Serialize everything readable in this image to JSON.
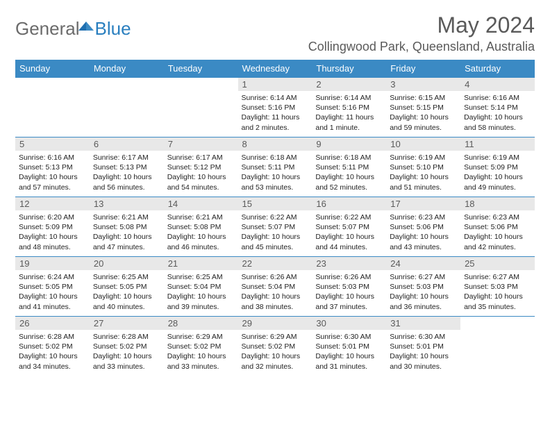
{
  "logo": {
    "part1": "General",
    "part2": "Blue"
  },
  "title": "May 2024",
  "location": "Collingwood Park, Queensland, Australia",
  "colors": {
    "header_bg": "#3b8ac4",
    "header_text": "#ffffff",
    "daynum_bg": "#e8e8e8",
    "daynum_text": "#5a5a5a",
    "border": "#3b8ac4",
    "title_text": "#5a5a5a",
    "logo_gray": "#6b6b6b",
    "logo_blue": "#2a7fbf",
    "body_text": "#222222",
    "page_bg": "#ffffff"
  },
  "day_names": [
    "Sunday",
    "Monday",
    "Tuesday",
    "Wednesday",
    "Thursday",
    "Friday",
    "Saturday"
  ],
  "weeks": [
    [
      null,
      null,
      null,
      {
        "n": "1",
        "sr": "6:14 AM",
        "ss": "5:16 PM",
        "dl": "11 hours and 2 minutes."
      },
      {
        "n": "2",
        "sr": "6:14 AM",
        "ss": "5:16 PM",
        "dl": "11 hours and 1 minute."
      },
      {
        "n": "3",
        "sr": "6:15 AM",
        "ss": "5:15 PM",
        "dl": "10 hours and 59 minutes."
      },
      {
        "n": "4",
        "sr": "6:16 AM",
        "ss": "5:14 PM",
        "dl": "10 hours and 58 minutes."
      }
    ],
    [
      {
        "n": "5",
        "sr": "6:16 AM",
        "ss": "5:13 PM",
        "dl": "10 hours and 57 minutes."
      },
      {
        "n": "6",
        "sr": "6:17 AM",
        "ss": "5:13 PM",
        "dl": "10 hours and 56 minutes."
      },
      {
        "n": "7",
        "sr": "6:17 AM",
        "ss": "5:12 PM",
        "dl": "10 hours and 54 minutes."
      },
      {
        "n": "8",
        "sr": "6:18 AM",
        "ss": "5:11 PM",
        "dl": "10 hours and 53 minutes."
      },
      {
        "n": "9",
        "sr": "6:18 AM",
        "ss": "5:11 PM",
        "dl": "10 hours and 52 minutes."
      },
      {
        "n": "10",
        "sr": "6:19 AM",
        "ss": "5:10 PM",
        "dl": "10 hours and 51 minutes."
      },
      {
        "n": "11",
        "sr": "6:19 AM",
        "ss": "5:09 PM",
        "dl": "10 hours and 49 minutes."
      }
    ],
    [
      {
        "n": "12",
        "sr": "6:20 AM",
        "ss": "5:09 PM",
        "dl": "10 hours and 48 minutes."
      },
      {
        "n": "13",
        "sr": "6:21 AM",
        "ss": "5:08 PM",
        "dl": "10 hours and 47 minutes."
      },
      {
        "n": "14",
        "sr": "6:21 AM",
        "ss": "5:08 PM",
        "dl": "10 hours and 46 minutes."
      },
      {
        "n": "15",
        "sr": "6:22 AM",
        "ss": "5:07 PM",
        "dl": "10 hours and 45 minutes."
      },
      {
        "n": "16",
        "sr": "6:22 AM",
        "ss": "5:07 PM",
        "dl": "10 hours and 44 minutes."
      },
      {
        "n": "17",
        "sr": "6:23 AM",
        "ss": "5:06 PM",
        "dl": "10 hours and 43 minutes."
      },
      {
        "n": "18",
        "sr": "6:23 AM",
        "ss": "5:06 PM",
        "dl": "10 hours and 42 minutes."
      }
    ],
    [
      {
        "n": "19",
        "sr": "6:24 AM",
        "ss": "5:05 PM",
        "dl": "10 hours and 41 minutes."
      },
      {
        "n": "20",
        "sr": "6:25 AM",
        "ss": "5:05 PM",
        "dl": "10 hours and 40 minutes."
      },
      {
        "n": "21",
        "sr": "6:25 AM",
        "ss": "5:04 PM",
        "dl": "10 hours and 39 minutes."
      },
      {
        "n": "22",
        "sr": "6:26 AM",
        "ss": "5:04 PM",
        "dl": "10 hours and 38 minutes."
      },
      {
        "n": "23",
        "sr": "6:26 AM",
        "ss": "5:03 PM",
        "dl": "10 hours and 37 minutes."
      },
      {
        "n": "24",
        "sr": "6:27 AM",
        "ss": "5:03 PM",
        "dl": "10 hours and 36 minutes."
      },
      {
        "n": "25",
        "sr": "6:27 AM",
        "ss": "5:03 PM",
        "dl": "10 hours and 35 minutes."
      }
    ],
    [
      {
        "n": "26",
        "sr": "6:28 AM",
        "ss": "5:02 PM",
        "dl": "10 hours and 34 minutes."
      },
      {
        "n": "27",
        "sr": "6:28 AM",
        "ss": "5:02 PM",
        "dl": "10 hours and 33 minutes."
      },
      {
        "n": "28",
        "sr": "6:29 AM",
        "ss": "5:02 PM",
        "dl": "10 hours and 33 minutes."
      },
      {
        "n": "29",
        "sr": "6:29 AM",
        "ss": "5:02 PM",
        "dl": "10 hours and 32 minutes."
      },
      {
        "n": "30",
        "sr": "6:30 AM",
        "ss": "5:01 PM",
        "dl": "10 hours and 31 minutes."
      },
      {
        "n": "31",
        "sr": "6:30 AM",
        "ss": "5:01 PM",
        "dl": "10 hours and 30 minutes."
      },
      null
    ]
  ],
  "labels": {
    "sunrise": "Sunrise:",
    "sunset": "Sunset:",
    "daylight": "Daylight:"
  }
}
